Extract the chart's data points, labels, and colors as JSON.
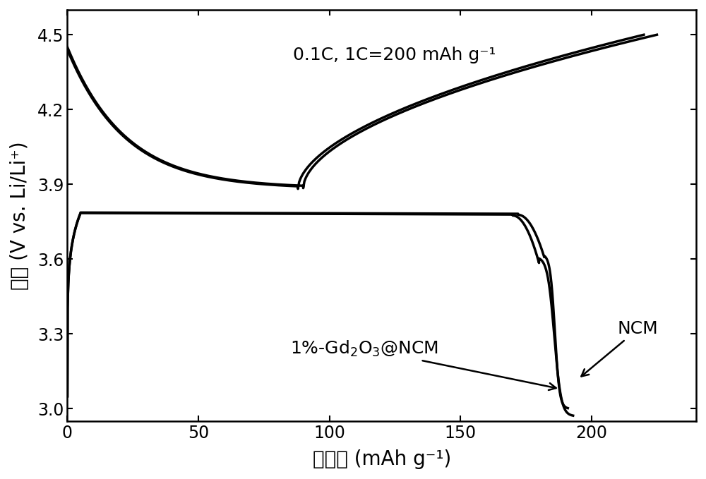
{
  "title_text": "0.1C, 1C=200 mAh g⁻¹",
  "xlabel_zh": "比容量",
  "xlabel_en": " (mAh g⁻¹)",
  "ylabel_zh": "电压",
  "ylabel_en": " (V vs. Li/Li⁺)",
  "xlim": [
    0,
    240
  ],
  "ylim": [
    2.95,
    4.6
  ],
  "yticks": [
    3.0,
    3.3,
    3.6,
    3.9,
    4.2,
    4.5
  ],
  "xticks": [
    0,
    50,
    100,
    150,
    200
  ],
  "bg_color": "#ffffff",
  "line_color": "#000000",
  "linewidth": 2.5
}
